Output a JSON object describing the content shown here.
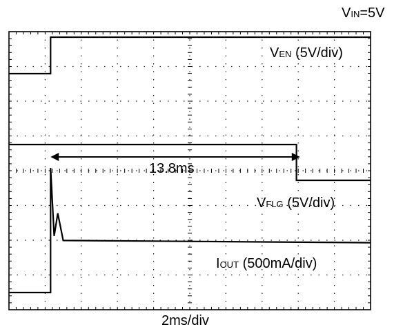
{
  "header": {
    "vin_main": "V",
    "vin_sub": "IN",
    "vin_rest": "=5V"
  },
  "channels": {
    "en": {
      "main": "V",
      "sub": "EN",
      "rest": " (5V/div)"
    },
    "flg": {
      "main": "V",
      "sub": "FLG",
      "rest": "  (5V/div)"
    },
    "iout": {
      "main": "I",
      "sub": "OUT",
      "rest": " (500mA/div)"
    }
  },
  "annotation": {
    "delay_label": "13.8ms"
  },
  "footer": {
    "timebase": "2ms/div"
  },
  "chart_data": {
    "type": "line",
    "title": "",
    "xlabel": "2ms/div",
    "x_divisions": 10,
    "y_divisions": 8,
    "xlim_ms": [
      0,
      20
    ],
    "grid": true,
    "colors": {
      "trace": "#000000",
      "grid": "#000000",
      "background": "#ffffff"
    },
    "series": [
      {
        "name": "VEN",
        "scale": "5V/div",
        "unit": "V",
        "x_ms": [
          0,
          2.3,
          2.3,
          20
        ],
        "values": [
          0,
          0,
          5,
          5
        ]
      },
      {
        "name": "VFLG",
        "scale": "5V/div",
        "unit": "V",
        "x_ms": [
          0,
          15.9,
          15.9,
          20
        ],
        "values": [
          5,
          5,
          0,
          0
        ]
      },
      {
        "name": "IOUT",
        "scale": "500mA/div",
        "unit": "mA",
        "x_ms": [
          0,
          2.3,
          2.3,
          2.5,
          2.7,
          3.0,
          20
        ],
        "values": [
          0,
          0,
          1100,
          500,
          700,
          460,
          440
        ]
      }
    ],
    "annotations": [
      {
        "text": "13.8ms",
        "from_ms": 2.3,
        "to_ms": 16.1
      }
    ]
  }
}
